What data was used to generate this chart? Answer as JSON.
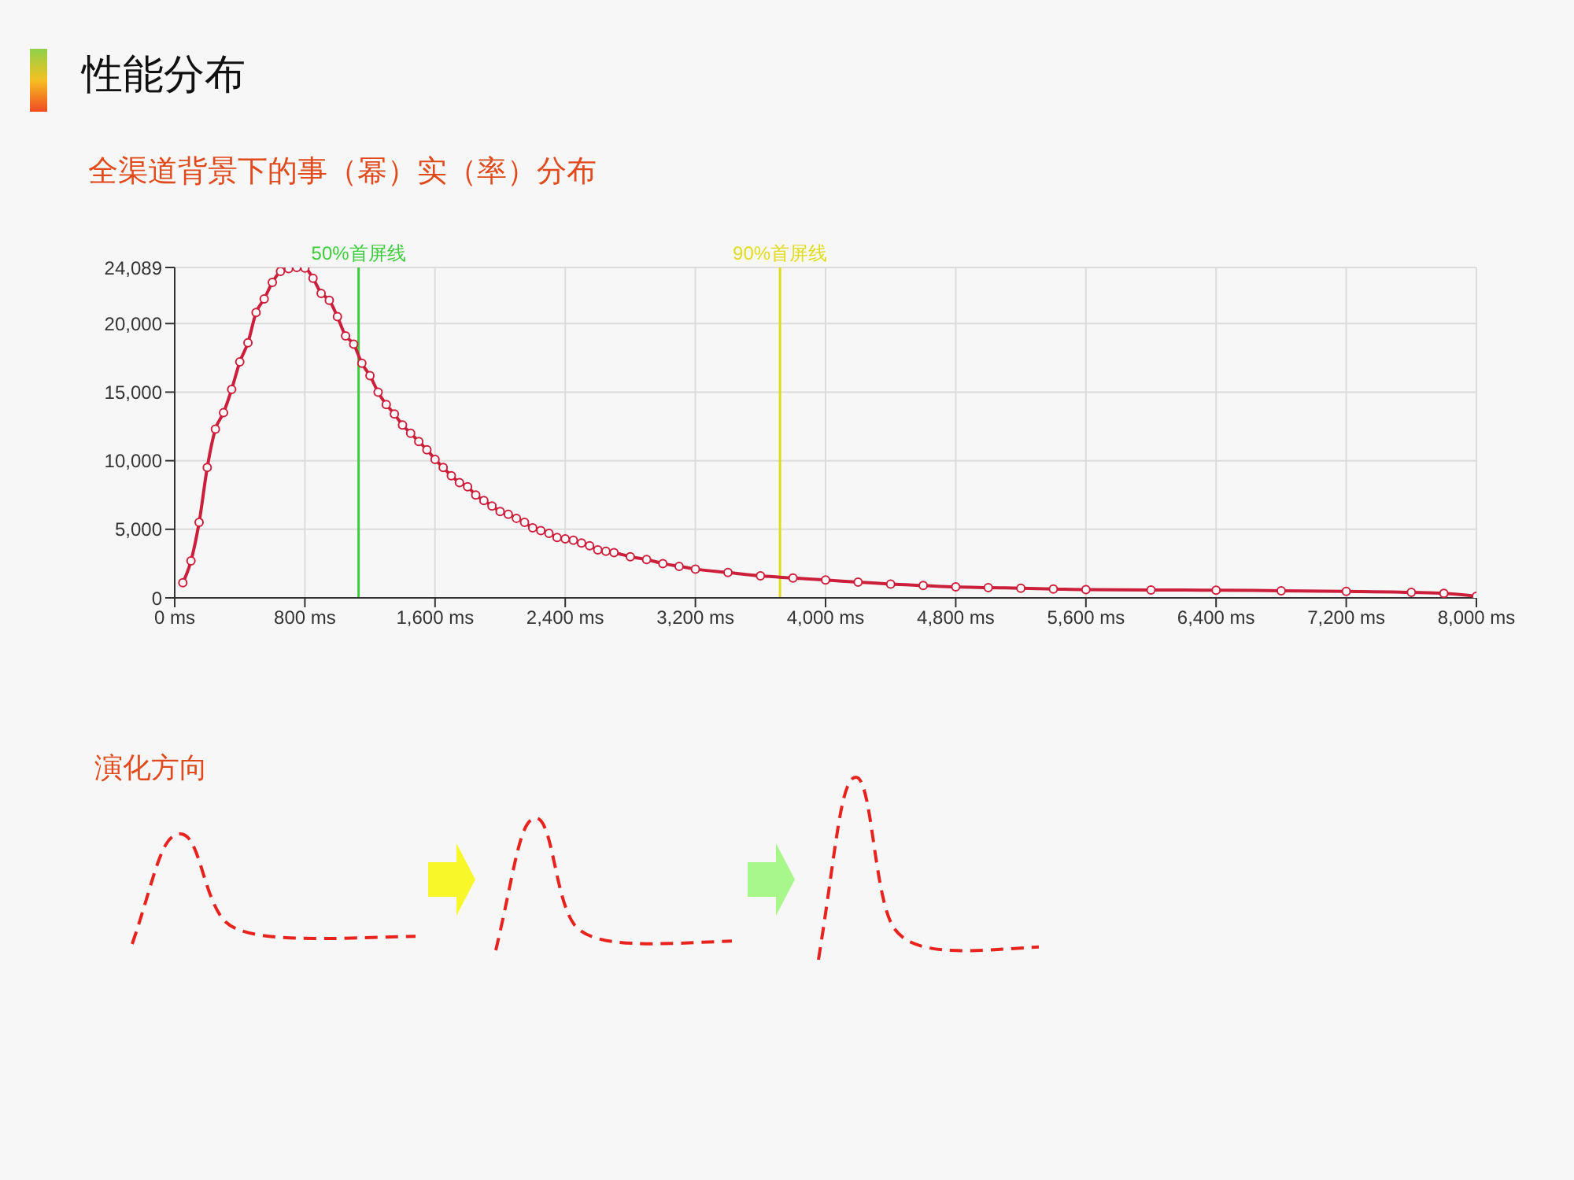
{
  "chart_data": {
    "type": "line",
    "title": "性能分布",
    "subtitle": "全渠道背景下的事（幂）实（率）分布",
    "annotations": [
      "演化方向"
    ],
    "series": [
      {
        "color": "#cc1f3b",
        "x": [
          50,
          100,
          150,
          200,
          250,
          300,
          350,
          400,
          450,
          500,
          550,
          600,
          650,
          700,
          750,
          800,
          850,
          900,
          950,
          1000,
          1050,
          1100,
          1150,
          1200,
          1250,
          1300,
          1350,
          1400,
          1450,
          1500,
          1550,
          1600,
          1650,
          1700,
          1750,
          1800,
          1850,
          1900,
          1950,
          2000,
          2050,
          2100,
          2150,
          2200,
          2250,
          2300,
          2350,
          2400,
          2450,
          2500,
          2550,
          2600,
          2650,
          2700,
          2800,
          2900,
          3000,
          3100,
          3200,
          3400,
          3600,
          3800,
          4000,
          4200,
          4400,
          4600,
          4800,
          5000,
          5200,
          5400,
          5600,
          6000,
          6400,
          6800,
          7200,
          7600,
          7800,
          8000
        ],
        "values": [
          1100,
          2700,
          5500,
          9500,
          12300,
          13500,
          15200,
          17200,
          18600,
          20800,
          21800,
          23000,
          23800,
          24000,
          24089,
          24050,
          23300,
          22200,
          21700,
          20500,
          19100,
          18500,
          17100,
          16200,
          15000,
          14100,
          13400,
          12600,
          12000,
          11400,
          10800,
          10100,
          9500,
          8900,
          8400,
          8100,
          7500,
          7100,
          6700,
          6300,
          6100,
          5800,
          5500,
          5100,
          4900,
          4700,
          4400,
          4300,
          4200,
          4000,
          3800,
          3500,
          3400,
          3300,
          3000,
          2800,
          2500,
          2300,
          2100,
          1850,
          1600,
          1450,
          1300,
          1150,
          1000,
          900,
          800,
          750,
          700,
          650,
          600,
          580,
          560,
          520,
          470,
          400,
          330,
          120
        ]
      }
    ],
    "xlim": [
      0,
      8000
    ],
    "xticks": [
      {
        "value": 0,
        "label": "0 ms"
      },
      {
        "value": 800,
        "label": "800 ms"
      },
      {
        "value": 1600,
        "label": "1,600 ms"
      },
      {
        "value": 2400,
        "label": "2,400 ms"
      },
      {
        "value": 3200,
        "label": "3,200 ms"
      },
      {
        "value": 4000,
        "label": "4,000 ms"
      },
      {
        "value": 4800,
        "label": "4,800 ms"
      },
      {
        "value": 5600,
        "label": "5,600 ms"
      },
      {
        "value": 6400,
        "label": "6,400 ms"
      },
      {
        "value": 7200,
        "label": "7,200 ms"
      },
      {
        "value": 8000,
        "label": "8,000 ms"
      }
    ],
    "ylim": [
      0,
      24089
    ],
    "yticks": [
      0,
      {
        "value": 5000,
        "label": "5,000"
      },
      {
        "value": 10000,
        "label": "10,000"
      },
      {
        "value": 15000,
        "label": "15,000"
      },
      {
        "value": 20000,
        "label": "20,000"
      },
      {
        "value": 24089,
        "label": "24,089"
      }
    ],
    "ref_lines": [
      {
        "axis": "x",
        "value": 1130,
        "label": "50%首屏线",
        "color": "#3ccc3c"
      },
      {
        "axis": "x",
        "value": 3720,
        "label": "90%首屏线",
        "color": "#e0dc1c"
      }
    ],
    "grid": true,
    "marker": "circle",
    "line_style": "solid"
  }
}
